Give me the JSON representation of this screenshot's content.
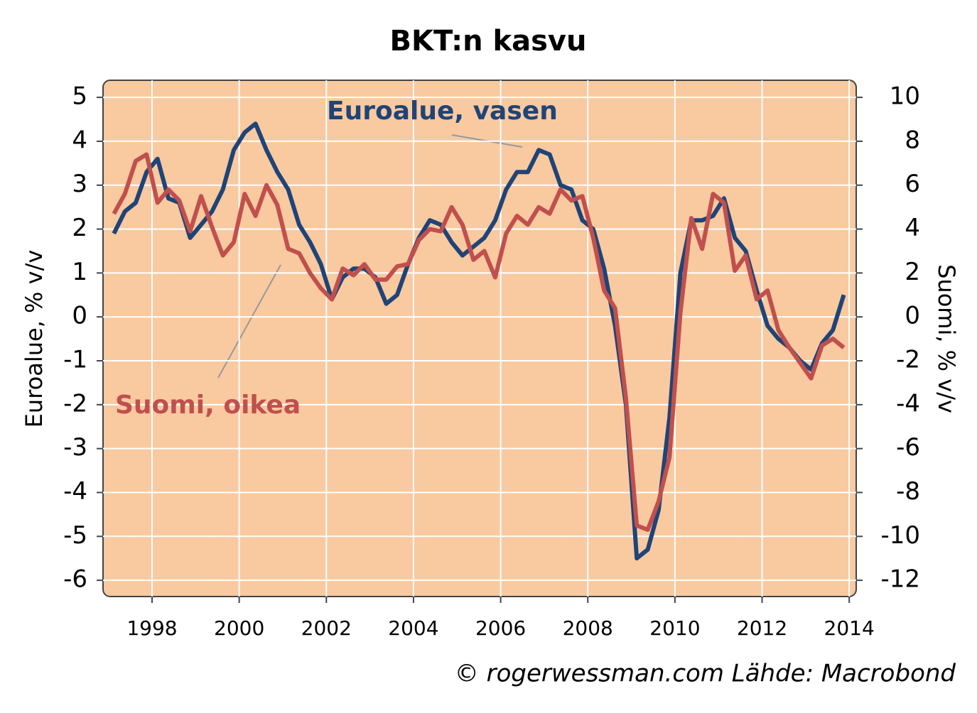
{
  "chart_data": {
    "type": "line",
    "title": "BKT:n kasvu",
    "y_label": "Euroalue, % v/v",
    "y2_label": "Suomi, % v/v",
    "source": "© rogerwessman.com Lähde: Macrobond",
    "x": [
      1997.125,
      1997.375,
      1997.625,
      1997.875,
      1998.125,
      1998.375,
      1998.625,
      1998.875,
      1999.125,
      1999.375,
      1999.625,
      1999.875,
      2000.125,
      2000.375,
      2000.625,
      2000.875,
      2001.125,
      2001.375,
      2001.625,
      2001.875,
      2002.125,
      2002.375,
      2002.625,
      2002.875,
      2003.125,
      2003.375,
      2003.625,
      2003.875,
      2004.125,
      2004.375,
      2004.625,
      2004.875,
      2005.125,
      2005.375,
      2005.625,
      2005.875,
      2006.125,
      2006.375,
      2006.625,
      2006.875,
      2007.125,
      2007.375,
      2007.625,
      2007.875,
      2008.125,
      2008.375,
      2008.625,
      2008.875,
      2009.125,
      2009.375,
      2009.625,
      2009.875,
      2010.125,
      2010.375,
      2010.625,
      2010.875,
      2011.125,
      2011.375,
      2011.625,
      2011.875,
      2012.125,
      2012.375,
      2012.625,
      2012.875,
      2013.125,
      2013.375,
      2013.625,
      2013.875
    ],
    "series": [
      {
        "name": "Euroalue, vasen",
        "color": "#1f4477",
        "axis": "y",
        "values": [
          1.9,
          2.4,
          2.6,
          3.3,
          3.6,
          2.7,
          2.6,
          1.8,
          2.1,
          2.4,
          2.9,
          3.8,
          4.2,
          4.4,
          3.8,
          3.3,
          2.9,
          2.1,
          1.7,
          1.2,
          0.4,
          0.9,
          1.1,
          1.1,
          0.9,
          0.3,
          0.5,
          1.2,
          1.8,
          2.2,
          2.1,
          1.7,
          1.4,
          1.6,
          1.8,
          2.2,
          2.9,
          3.3,
          3.3,
          3.8,
          3.7,
          3.0,
          2.9,
          2.2,
          2.0,
          1.1,
          -0.2,
          -2.0,
          -5.5,
          -5.3,
          -4.4,
          -2.3,
          1.0,
          2.2,
          2.2,
          2.3,
          2.7,
          1.8,
          1.5,
          0.6,
          -0.2,
          -0.5,
          -0.7,
          -1.0,
          -1.2,
          -0.6,
          -0.3,
          0.5
        ]
      },
      {
        "name": "Suomi, oikea",
        "color": "#c0504d",
        "axis": "y2",
        "values": [
          4.7,
          5.6,
          7.1,
          7.4,
          5.2,
          5.8,
          5.3,
          3.9,
          5.5,
          4.1,
          2.8,
          3.4,
          5.6,
          4.6,
          6.0,
          5.1,
          3.1,
          2.9,
          2.0,
          1.3,
          0.8,
          2.2,
          1.9,
          2.4,
          1.7,
          1.7,
          2.3,
          2.4,
          3.5,
          4.0,
          3.9,
          5.0,
          4.2,
          2.6,
          3.0,
          1.8,
          3.8,
          4.6,
          4.2,
          5.0,
          4.7,
          5.8,
          5.3,
          5.5,
          3.6,
          1.2,
          0.4,
          -3.7,
          -9.5,
          -9.7,
          -8.4,
          -6.4,
          0.2,
          4.5,
          3.1,
          5.6,
          5.2,
          2.1,
          2.8,
          0.8,
          1.2,
          -0.6,
          -1.4,
          -2.1,
          -2.8,
          -1.3,
          -1.0,
          -1.4
        ]
      }
    ],
    "xlim": [
      1996.875,
      2014.16
    ],
    "xticks": [
      1998,
      2000,
      2002,
      2004,
      2006,
      2008,
      2010,
      2012,
      2014
    ],
    "ylim": [
      -6.37,
      5.39
    ],
    "yticks": [
      -6,
      -5,
      -4,
      -3,
      -2,
      -1,
      0,
      1,
      2,
      3,
      4,
      5
    ],
    "y2lim": [
      -12.74,
      10.78
    ],
    "y2ticks": [
      -12,
      -10,
      -8,
      -6,
      -4,
      -2,
      0,
      2,
      4,
      6,
      8,
      10
    ],
    "grid": true,
    "background": "#f9c9a0"
  }
}
